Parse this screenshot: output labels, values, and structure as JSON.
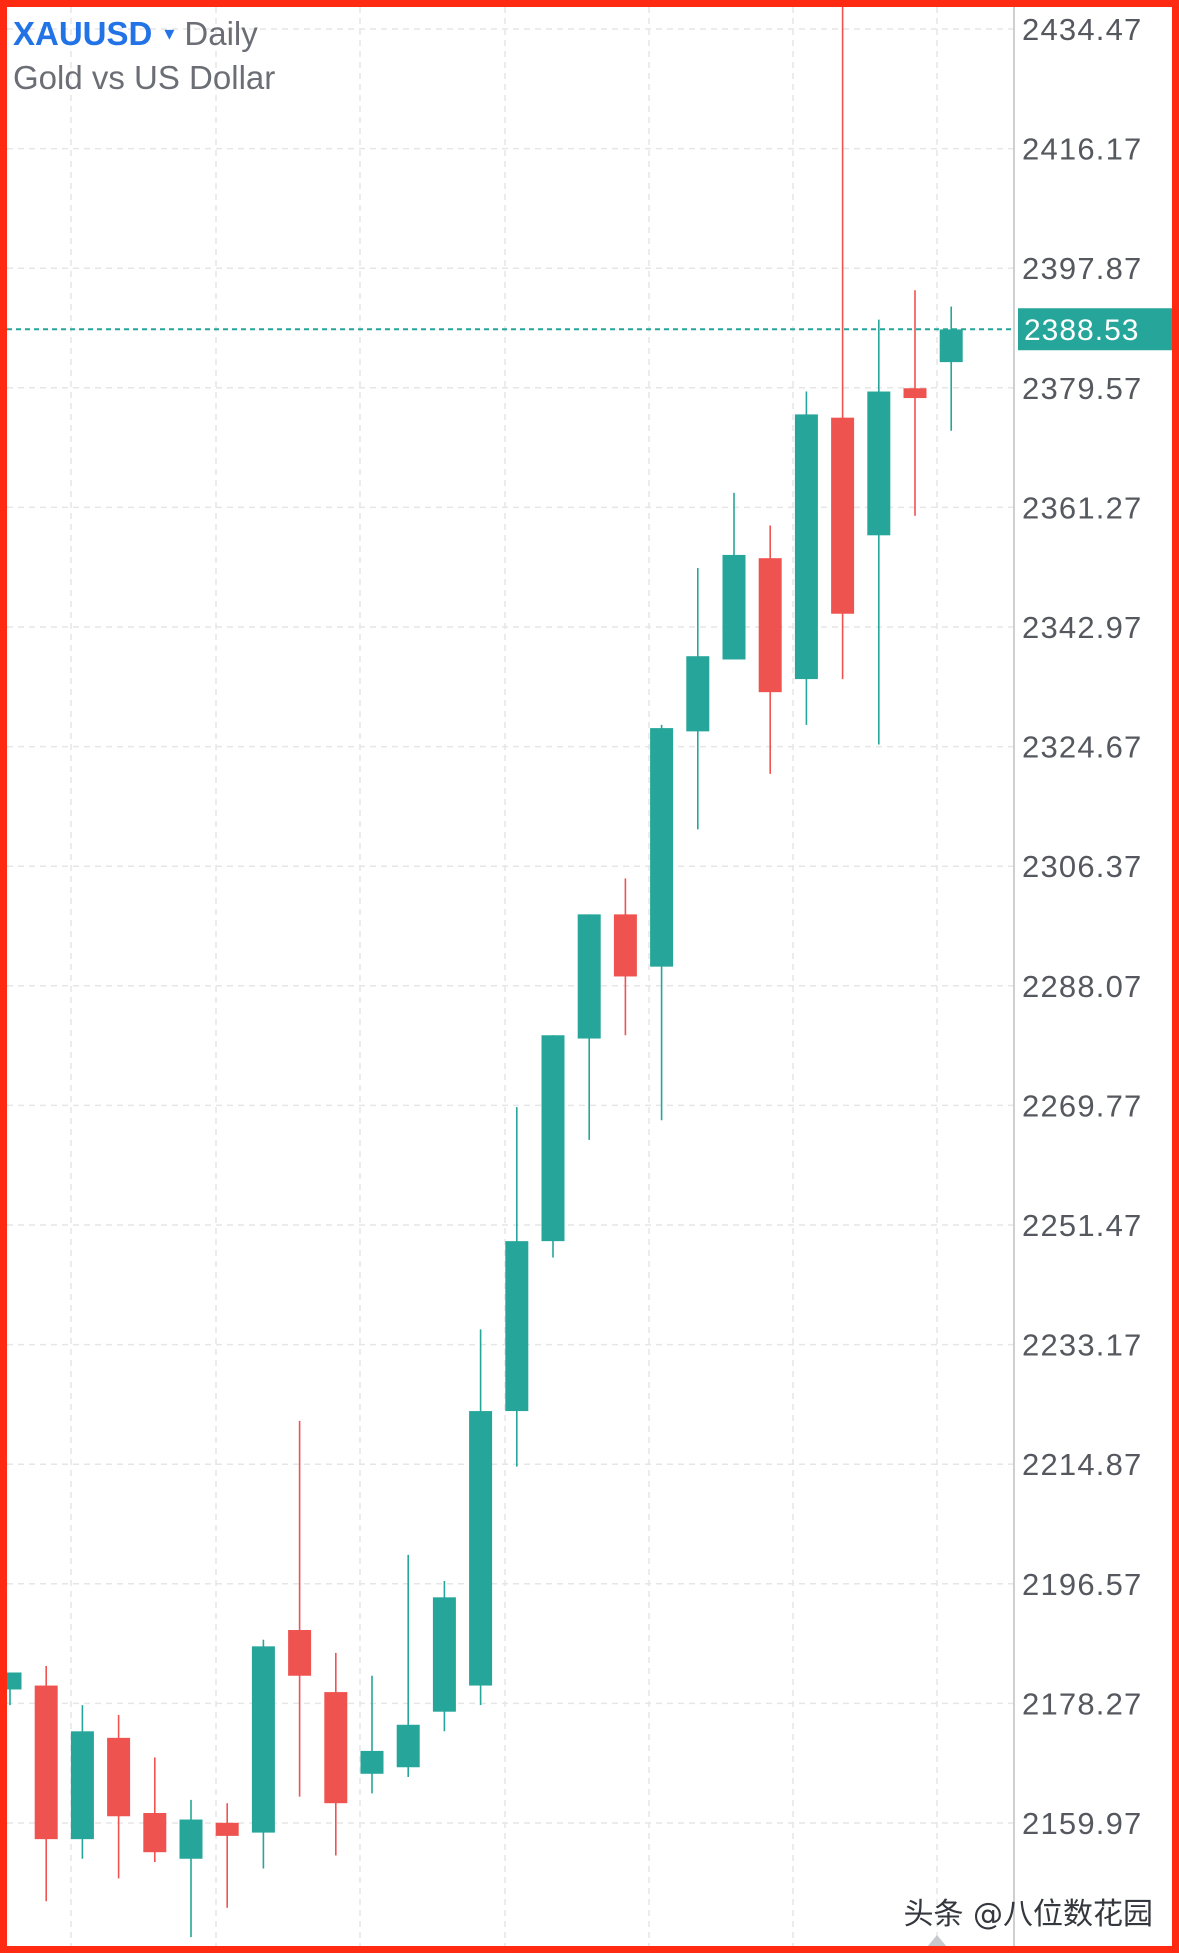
{
  "header": {
    "symbol": "XAUUSD",
    "caret": "▾",
    "interval": "Daily",
    "subtitle": "Gold vs US Dollar"
  },
  "watermark": "头条 @八位数花园",
  "colors": {
    "up": "#26a69a",
    "down": "#ef5350",
    "frame": "#ff2a12",
    "grid": "#e6e6e6",
    "axis_text": "#55585e",
    "symbol": "#2273e6"
  },
  "chart_data": {
    "type": "candlestick",
    "title": "XAUUSD Daily",
    "subtitle": "Gold vs US Dollar",
    "grid": true,
    "y_axis_position": "right",
    "ylim": [
      2153,
      2443
    ],
    "y_ticks": [
      2434.47,
      2416.17,
      2397.87,
      2379.57,
      2361.27,
      2342.97,
      2324.67,
      2306.37,
      2288.07,
      2269.77,
      2251.47,
      2233.17,
      2214.87,
      2196.57,
      2178.27,
      2159.97
    ],
    "last_price": 2388.53,
    "candles": [
      {
        "o": 2180.4,
        "h": 2183.0,
        "l": 2178.0,
        "c": 2183.0
      },
      {
        "o": 2181.0,
        "h": 2184.0,
        "l": 2148.0,
        "c": 2157.5
      },
      {
        "o": 2157.5,
        "h": 2178.0,
        "l": 2154.5,
        "c": 2174.0
      },
      {
        "o": 2173.0,
        "h": 2176.5,
        "l": 2151.5,
        "c": 2161.0
      },
      {
        "o": 2161.5,
        "h": 2170.0,
        "l": 2154.0,
        "c": 2155.5
      },
      {
        "o": 2154.5,
        "h": 2163.5,
        "l": 2142.5,
        "c": 2160.5
      },
      {
        "o": 2160.0,
        "h": 2163.0,
        "l": 2147.0,
        "c": 2158.0
      },
      {
        "o": 2158.5,
        "h": 2188.0,
        "l": 2153.0,
        "c": 2187.0
      },
      {
        "o": 2189.5,
        "h": 2221.5,
        "l": 2164.0,
        "c": 2182.5
      },
      {
        "o": 2180.0,
        "h": 2186.0,
        "l": 2155.0,
        "c": 2163.0
      },
      {
        "o": 2167.5,
        "h": 2182.5,
        "l": 2164.5,
        "c": 2171.0
      },
      {
        "o": 2168.5,
        "h": 2201.0,
        "l": 2167.0,
        "c": 2175.0
      },
      {
        "o": 2177.0,
        "h": 2197.0,
        "l": 2174.0,
        "c": 2194.5
      },
      {
        "o": 2181.0,
        "h": 2235.5,
        "l": 2178.0,
        "c": 2223.0
      },
      {
        "o": 2223.0,
        "h": 2269.5,
        "l": 2214.5,
        "c": 2249.0
      },
      {
        "o": 2249.0,
        "h": 2280.5,
        "l": 2246.5,
        "c": 2280.5
      },
      {
        "o": 2280.0,
        "h": 2299.0,
        "l": 2264.5,
        "c": 2299.0
      },
      {
        "o": 2299.0,
        "h": 2304.5,
        "l": 2280.5,
        "c": 2289.5
      },
      {
        "o": 2291.0,
        "h": 2328.0,
        "l": 2267.5,
        "c": 2327.5
      },
      {
        "o": 2327.0,
        "h": 2352.0,
        "l": 2312.0,
        "c": 2338.5
      },
      {
        "o": 2338.0,
        "h": 2363.5,
        "l": 2338.0,
        "c": 2354.0
      },
      {
        "o": 2353.5,
        "h": 2358.5,
        "l": 2320.5,
        "c": 2333.0
      },
      {
        "o": 2335.0,
        "h": 2379.0,
        "l": 2328.0,
        "c": 2375.5
      },
      {
        "o": 2375.0,
        "h": 2442.5,
        "l": 2335.0,
        "c": 2345.0
      },
      {
        "o": 2357.0,
        "h": 2390.0,
        "l": 2325.0,
        "c": 2379.0
      },
      {
        "o": 2379.5,
        "h": 2394.5,
        "l": 2360.0,
        "c": 2378.0
      },
      {
        "o": 2383.5,
        "h": 2392.0,
        "l": 2373.0,
        "c": 2388.5
      }
    ]
  }
}
